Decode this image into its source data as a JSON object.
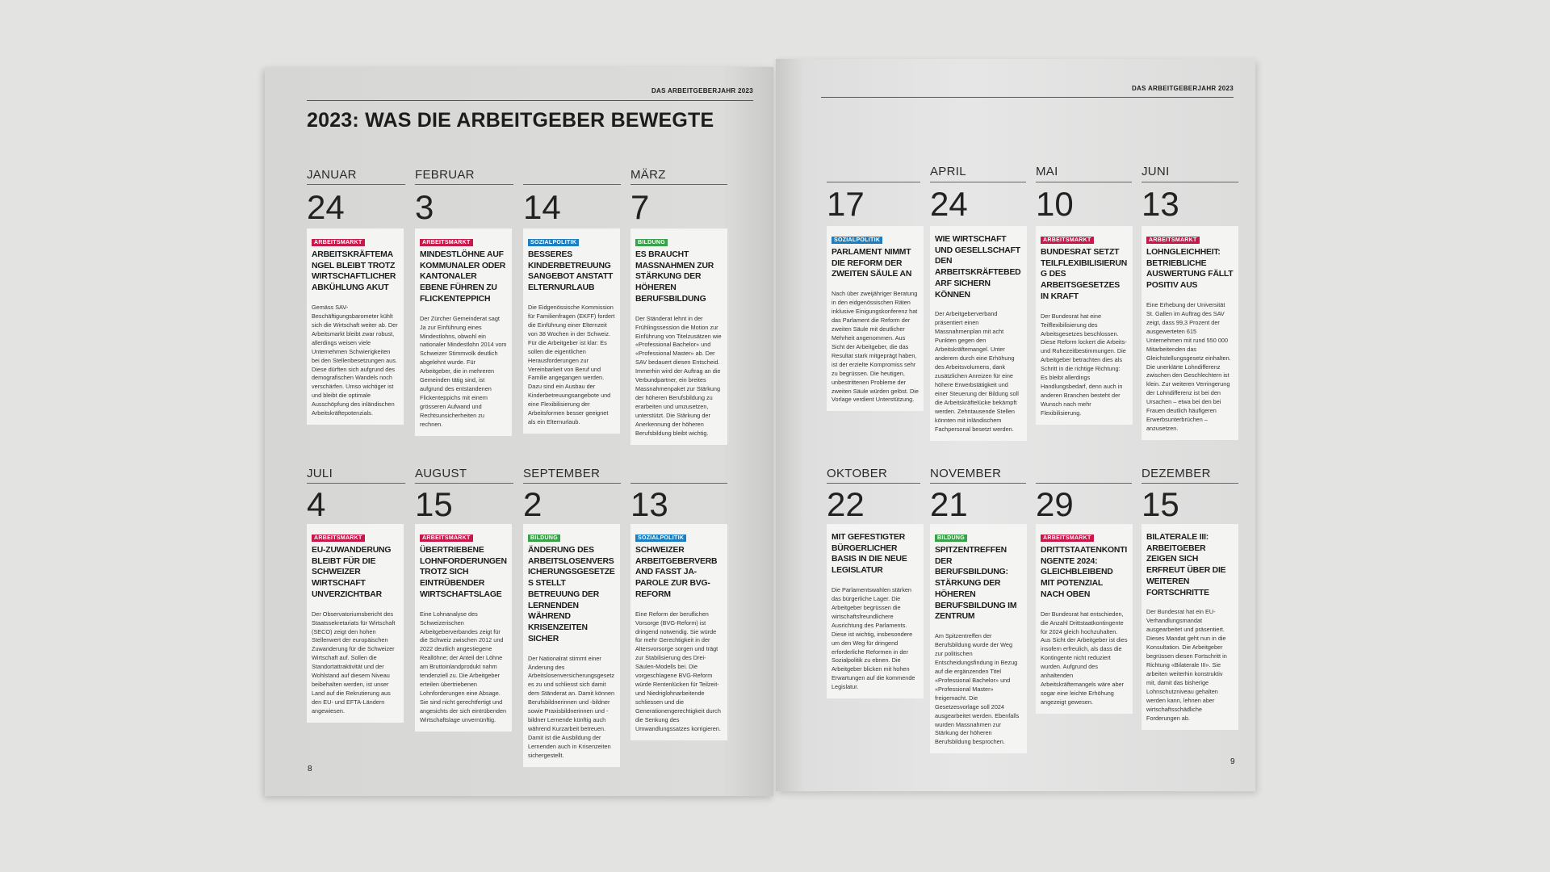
{
  "left_page": {
    "header": "DAS ARBEITGEBERJAHR 2023",
    "title": "2023: WAS DIE ARBEITGEBER BEWEGTE",
    "page_number": "8"
  },
  "right_page": {
    "header": "DAS ARBEITGEBERJAHR 2023",
    "page_number": "9"
  },
  "entries": [
    {
      "month": "JANUAR",
      "day": "24",
      "tag": {
        "label": "ARBEITSMARKT",
        "color": "#c8194b"
      },
      "headline": "ARBEITSKRÄFTEMANGEL BLEIBT TROTZ WIRTSCHAFTLICHER ABKÜHLUNG AKUT",
      "body": "Gemäss SAV-Beschäftigungsbarometer kühlt sich die Wirtschaft weiter ab. Der Arbeitsmarkt bleibt zwar robust, allerdings weisen viele Unternehmen Schwierigkeiten bei den Stellenbesetzungen aus. Diese dürften sich aufgrund des demografischen Wandels noch verschärfen. Umso wichtiger ist und bleibt die optimale Ausschöpfung des inländischen Arbeitskräftepotenzials."
    },
    {
      "month": "FEBRUAR",
      "day": "3",
      "tag": {
        "label": "ARBEITSMARKT",
        "color": "#c8194b"
      },
      "headline": "MINDESTLÖHNE AUF KOMMUNALER ODER KANTONALER EBENE FÜHREN ZU FLICKENTEPPICH",
      "body": "Der Zürcher Gemeinderat sagt Ja zur Einführung eines Mindestlohns, obwohl ein nationaler Mindestlohn 2014 vom Schweizer Stimmvolk deutlich abgelehnt wurde. Für Arbeitgeber, die in mehreren Gemeinden tätig sind, ist aufgrund des entstandenen Flickenteppichs mit einem grösseren Aufwand und Rechtsunsicherheiten zu rechnen."
    },
    {
      "day": "14",
      "tag": {
        "label": "SOZIALPOLITIK",
        "color": "#1b7fc1"
      },
      "headline": "BESSERES KINDERBETREUUNGSANGEBOT ANSTATT ELTERNURLAUB",
      "body": "Die Eidgenössische Kommission für Familienfragen (EKFF) fordert die Einführung einer Elternzeit von 38 Wochen in der Schweiz. Für die Arbeitgeber ist klar: Es sollen die eigentlichen Herausforderungen zur Vereinbarkeit von Beruf und Familie angegangen werden. Dazu sind ein Ausbau der Kinderbetreuungsangebote und eine Flexibilisierung der Arbeitsformen besser geeignet als ein Elternurlaub."
    },
    {
      "month": "MÄRZ",
      "day": "7",
      "tag": {
        "label": "BILDUNG",
        "color": "#3aa14a"
      },
      "headline": "ES BRAUCHT MASSNAHMEN ZUR STÄRKUNG DER HÖHEREN BERUFSBILDUNG",
      "body": "Der Ständerat lehnt in der Frühlingssession die Motion zur Einführung von Titelzusätzen wie «Professional Bachelor» und «Professional Master» ab. Der SAV bedauert diesen Entscheid. Immerhin wird der Auftrag an die Verbundpartner, ein breites Massnahmenpaket zur Stärkung der höheren Berufsbildung zu erarbeiten und umzusetzen, unterstützt. Die Stärkung der Anerkennung der höheren Berufsbildung bleibt wichtig."
    },
    {
      "day": "17",
      "tag": {
        "label": "SOZIALPOLITIK",
        "color": "#1b7fc1"
      },
      "headline": "PARLAMENT NIMMT DIE REFORM DER ZWEITEN SÄULE AN",
      "body": "Nach über zweijähriger Beratung in den eidgenössischen Räten inklusive Einigungskonferenz hat das Parlament die Reform der zweiten Säule mit deutlicher Mehrheit angenommen. Aus Sicht der Arbeitgeber, die das Resultat stark mitgeprägt haben, ist der erzielte Kompromiss sehr zu begrüssen. Die heutigen, unbestrittenen Probleme der zweiten Säule würden gelöst. Die Vorlage verdient Unterstützung."
    },
    {
      "month": "APRIL",
      "day": "24",
      "headline": "WIE WIRTSCHAFT UND GESELLSCHAFT DEN ARBEITSKRÄFTEBEDARF SICHERN KÖNNEN",
      "body": "Der Arbeitgeberverband präsentiert einen Massnahmenplan mit acht Punkten gegen den Arbeitskräftemangel. Unter anderem durch eine Erhöhung des Arbeitsvolumens, dank zusätzlichen Anreizen für eine höhere Erwerbstätigkeit und einer Steuerung der Bildung soll die Arbeitskräftelücke bekämpft werden. Zehntausende Stellen könnten mit inländischem Fachpersonal besetzt werden."
    },
    {
      "month": "MAI",
      "day": "10",
      "tag": {
        "label": "ARBEITSMARKT",
        "color": "#c8194b"
      },
      "headline": "BUNDESRAT SETZT TEILFLEXIBILISIERUNG DES ARBEITSGESETZES IN KRAFT",
      "body": "Der Bundesrat hat eine Teilflexibilisierung des Arbeitsgesetzes beschlossen. Diese Reform lockert die Arbeits- und Ruhezeitbestimmungen. Die Arbeitgeber betrachten dies als Schritt in die richtige Richtung: Es bleibt allerdings Handlungsbedarf, denn auch in anderen Branchen besteht der Wunsch nach mehr Flexibilisierung."
    },
    {
      "month": "JUNI",
      "day": "13",
      "tag": {
        "label": "ARBEITSMARKT",
        "color": "#c8194b"
      },
      "headline": "LOHNGLEICHHEIT: BETRIEBLICHE AUSWERTUNG FÄLLT POSITIV AUS",
      "body": "Eine Erhebung der Universität St. Gallen im Auftrag des SAV zeigt, dass 99,3 Prozent der ausgewerteten 615 Unternehmen mit rund 550 000 Mitarbeitenden das Gleichstellungsgesetz einhalten. Die unerklärte Lohndifferenz zwischen den Geschlechtern ist klein. Zur weiteren Verringerung der Lohndifferenz ist bei den Ursachen – etwa bei den bei Frauen deutlich häufigeren Erwerbsunterbrüchen – anzusetzen."
    },
    {
      "month": "JULI",
      "day": "4",
      "tag": {
        "label": "ARBEITSMARKT",
        "color": "#c8194b"
      },
      "headline": "EU-ZUWANDERUNG BLEIBT FÜR DIE SCHWEIZER WIRTSCHAFT UNVERZICHTBAR",
      "body": "Der Observatoriumsbericht des Staatssekretariats für Wirtschaft (SECO) zeigt den hohen Stellenwert der europäischen Zuwanderung für die Schweizer Wirtschaft auf. Sollen die Standortattraktivität und der Wohlstand auf diesem Niveau beibehalten werden, ist unser Land auf die Rekrutierung aus den EU- und EFTA-Ländern angewiesen."
    },
    {
      "month": "AUGUST",
      "day": "15",
      "tag": {
        "label": "ARBEITSMARKT",
        "color": "#c8194b"
      },
      "headline": "ÜBERTRIEBENE LOHNFORDERUNGEN TROTZ SICH EINTRÜBENDER WIRTSCHAFTSLAGE",
      "body": "Eine Lohnanalyse des Schweizerischen Arbeitgeberverbandes zeigt für die Schweiz zwischen 2012 und 2022 deutlich angestiegene Reallöhne; der Anteil der Löhne am Bruttoinlandprodukt nahm tendenziell zu. Die Arbeitgeber erteilen übertriebenen Lohnforderungen eine Absage. Sie sind nicht gerechtfertigt und angesichts der sich eintrübenden Wirtschaftslage unvernünftig."
    },
    {
      "month": "SEPTEMBER",
      "day": "2",
      "tag": {
        "label": "BILDUNG",
        "color": "#3aa14a"
      },
      "headline": "ÄNDERUNG DES ARBEITSLOSENVERSICHERUNGSGESETZES STELLT BETREUUNG DER LERNENDEN WÄHREND KRISENZEITEN SICHER",
      "body": "Der Nationalrat stimmt einer Änderung des Arbeitslosenversicherungsgesetzes zu und schliesst sich damit dem Ständerat an. Damit können Berufsbildnerinnen und -bildner sowie Praxisbildnerinnen und -bildner Lernende künftig auch während Kurzarbeit betreuen. Damit ist die Ausbildung der Lernenden auch in Krisenzeiten sichergestellt."
    },
    {
      "day": "13",
      "tag": {
        "label": "SOZIALPOLITIK",
        "color": "#1b7fc1"
      },
      "headline": "SCHWEIZER ARBEITGEBERVERBAND FASST JA-PAROLE ZUR BVG-REFORM",
      "body": "Eine Reform der beruflichen Vorsorge (BVG-Reform) ist dringend notwendig. Sie würde für mehr Gerechtigkeit in der Altersvorsorge sorgen und trägt zur Stabilisierung des Drei-Säulen-Modells bei. Die vorgeschlagene BVG-Reform würde Rentenlücken für Teilzeit- und Niedriglohnarbeitende schliessen und die Generationengerechtigkeit durch die Senkung des Umwandlungssatzes korrigieren."
    },
    {
      "month": "OKTOBER",
      "day": "22",
      "headline": "MIT GEFESTIGTER BÜRGERLICHER BASIS IN DIE NEUE LEGISLATUR",
      "body": "Die Parlamentswahlen stärken das bürgerliche Lager. Die Arbeitgeber begrüssen die wirtschaftsfreundlichere Ausrichtung des Parlaments. Diese ist wichtig, insbesondere um den Weg für dringend erforderliche Reformen in der Sozialpolitik zu ebnen. Die Arbeitgeber blicken mit hohen Erwartungen auf die kommende Legislatur."
    },
    {
      "month": "NOVEMBER",
      "day": "21",
      "tag": {
        "label": "BILDUNG",
        "color": "#3aa14a"
      },
      "headline": "SPITZENTREFFEN DER BERUFSBILDUNG: STÄRKUNG DER HÖHEREN BERUFSBILDUNG IM ZENTRUM",
      "body": "Am Spitzentreffen der Berufsbildung wurde der Weg zur politischen Entscheidungsfindung in Bezug auf die ergänzenden Titel «Professional Bachelor» und «Professional Master» freigemacht. Die Gesetzesvorlage soll 2024 ausgearbeitet werden. Ebenfalls wurden Massnahmen zur Stärkung der höheren Berufsbildung besprochen."
    },
    {
      "day": "29",
      "tag": {
        "label": "ARBEITSMARKT",
        "color": "#c8194b"
      },
      "headline": "DRITTSTAATENKONTINGENTE 2024: GLEICHBLEIBEND MIT POTENZIAL NACH OBEN",
      "body": "Der Bundesrat hat entschieden, die Anzahl Drittstaatkontingente für 2024 gleich hochzuhalten. Aus Sicht der Arbeitgeber ist dies insofern erfreulich, als dass die Kontingente nicht reduziert wurden. Aufgrund des anhaltenden Arbeitskräftemangels wäre aber sogar eine leichte Erhöhung angezeigt gewesen."
    },
    {
      "month": "DEZEMBER",
      "day": "15",
      "headline": "BILATERALE III: ARBEITGEBER ZEIGEN SICH ERFREUT ÜBER DIE WEITEREN FORTSCHRITTE",
      "body": "Der Bundesrat hat ein EU-Verhandlungsmandat ausgearbeitet und präsentiert. Dieses Mandat geht nun in die Konsultation. Die Arbeitgeber begrüssen diesen Fortschritt in Richtung «Bilaterale III». Sie arbeiten weiterhin konstruktiv mit, damit das bisherige Lohnschutzniveau gehalten werden kann, lehnen aber wirtschaftsschädliche Forderungen ab."
    }
  ]
}
